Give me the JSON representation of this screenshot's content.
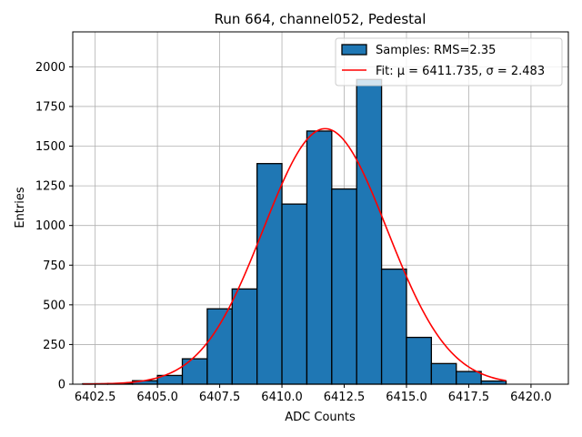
{
  "chart_data": {
    "type": "bar",
    "title": "Run 664, channel052, Pedestal",
    "xlabel": "ADC Counts",
    "ylabel": "Entries",
    "xlim": [
      6401.6,
      6421.5
    ],
    "ylim": [
      0,
      2220
    ],
    "x_ticks": [
      6402.5,
      6405.0,
      6407.5,
      6410.0,
      6412.5,
      6415.0,
      6417.5,
      6420.0
    ],
    "x_tick_labels": [
      "6402.5",
      "6405.0",
      "6407.5",
      "6410.0",
      "6412.5",
      "6415.0",
      "6417.5",
      "6420.0"
    ],
    "y_ticks": [
      0,
      250,
      500,
      750,
      1000,
      1250,
      1500,
      1750,
      2000
    ],
    "y_tick_labels": [
      "0",
      "250",
      "500",
      "750",
      "1000",
      "1250",
      "1500",
      "1750",
      "2000"
    ],
    "grid": true,
    "legend_position": "top-right",
    "histogram": {
      "name": "Samples: RMS=2.35",
      "color": "#1f77b4",
      "bins": [
        {
          "x0": 6402,
          "x1": 6403,
          "count": 3
        },
        {
          "x0": 6403,
          "x1": 6404,
          "count": 5
        },
        {
          "x0": 6404,
          "x1": 6405,
          "count": 22
        },
        {
          "x0": 6405,
          "x1": 6406,
          "count": 55
        },
        {
          "x0": 6406,
          "x1": 6407,
          "count": 160
        },
        {
          "x0": 6407,
          "x1": 6408,
          "count": 475
        },
        {
          "x0": 6408,
          "x1": 6409,
          "count": 600
        },
        {
          "x0": 6409,
          "x1": 6410,
          "count": 1390
        },
        {
          "x0": 6410,
          "x1": 6411,
          "count": 1135
        },
        {
          "x0": 6411,
          "x1": 6412,
          "count": 1595
        },
        {
          "x0": 6412,
          "x1": 6413,
          "count": 1230
        },
        {
          "x0": 6413,
          "x1": 6414,
          "count": 1920
        },
        {
          "x0": 6414,
          "x1": 6415,
          "count": 725
        },
        {
          "x0": 6415,
          "x1": 6416,
          "count": 295
        },
        {
          "x0": 6416,
          "x1": 6417,
          "count": 130
        },
        {
          "x0": 6417,
          "x1": 6418,
          "count": 80
        },
        {
          "x0": 6418,
          "x1": 6419,
          "count": 20
        }
      ]
    },
    "fit": {
      "name": "Fit: μ = 6411.735, σ = 2.483",
      "color": "#ff0000",
      "mu": 6411.735,
      "sigma": 2.483,
      "amplitude": 1610,
      "x_range": [
        6402,
        6419
      ]
    }
  }
}
